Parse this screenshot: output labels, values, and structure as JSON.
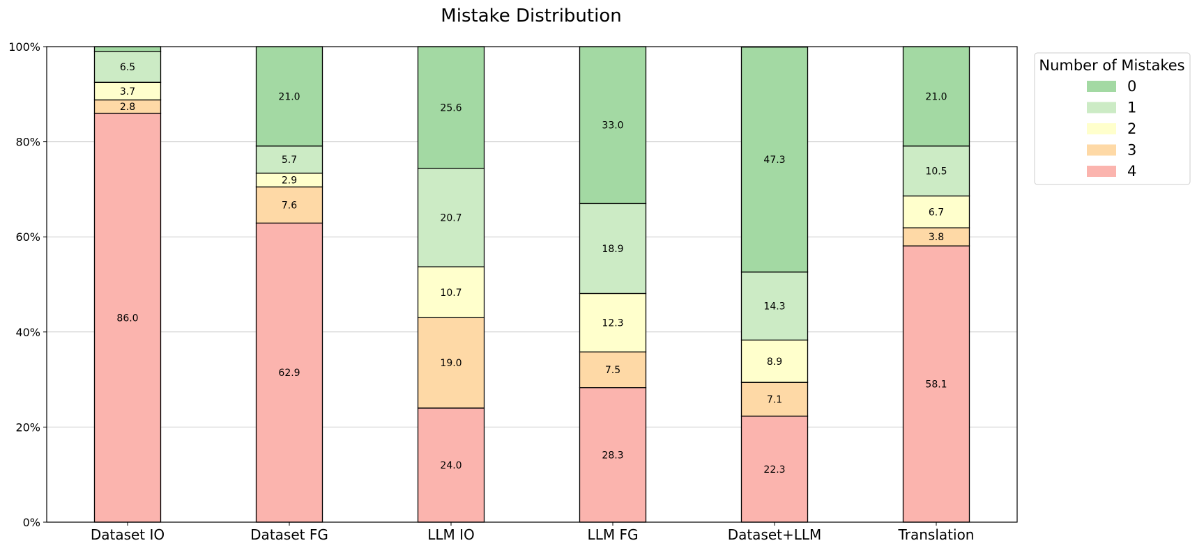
{
  "chart_data": {
    "type": "bar",
    "stacked": true,
    "title": "Mistake Distribution",
    "xlabel": "",
    "ylabel": "",
    "ylim": [
      0,
      100
    ],
    "yticks": [
      "0%",
      "20%",
      "40%",
      "60%",
      "80%",
      "100%"
    ],
    "ytick_values": [
      0,
      20,
      40,
      60,
      80,
      100
    ],
    "grid": "horizontal",
    "categories": [
      "Dataset IO",
      "Dataset FG",
      "LLM IO",
      "LLM FG",
      "Dataset+LLM",
      "Translation"
    ],
    "legend": {
      "title": "Number of Mistakes",
      "placement": "outside-top-right"
    },
    "series": [
      {
        "name": "4",
        "color": "#fbb4ae",
        "values": [
          86.0,
          62.9,
          24.0,
          28.3,
          22.3,
          58.1
        ]
      },
      {
        "name": "3",
        "color": "#fed9a6",
        "values": [
          2.8,
          7.6,
          19.0,
          7.5,
          7.1,
          3.8
        ]
      },
      {
        "name": "2",
        "color": "#ffffcc",
        "values": [
          3.7,
          2.9,
          10.7,
          12.3,
          8.9,
          6.7
        ]
      },
      {
        "name": "1",
        "color": "#ccebc5",
        "values": [
          6.5,
          5.7,
          20.7,
          18.9,
          14.3,
          10.5
        ]
      },
      {
        "name": "0",
        "color": "#a3d9a3",
        "values": [
          1.0,
          21.0,
          25.6,
          33.0,
          47.3,
          21.0
        ]
      }
    ],
    "data_labels": [
      [
        "86.0",
        "62.9",
        "24.0",
        "28.3",
        "22.3",
        "58.1"
      ],
      [
        "2.8",
        "7.6",
        "19.0",
        "7.5",
        "7.1",
        "3.8"
      ],
      [
        "3.7",
        "2.9",
        "10.7",
        "12.3",
        "8.9",
        "6.7"
      ],
      [
        "6.5",
        "5.7",
        "20.7",
        "18.9",
        "14.3",
        "10.5"
      ],
      [
        "",
        "21.0",
        "25.6",
        "33.0",
        "47.3",
        "21.0"
      ]
    ]
  }
}
